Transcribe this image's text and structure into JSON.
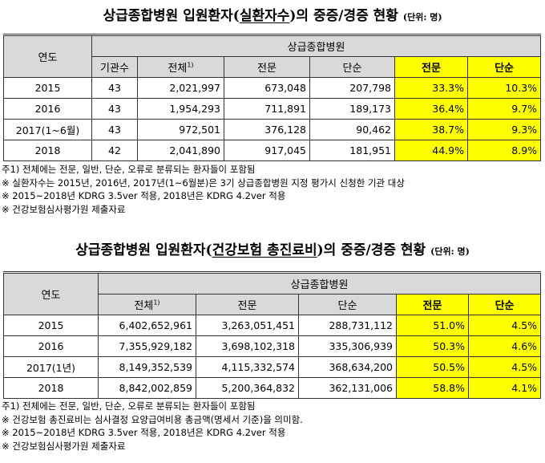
{
  "table1": {
    "title_prefix": "상급종합병원 입원환자(",
    "title_underlined": "실환자수",
    "title_suffix": ")의 중증/경증 현황",
    "unit": "(단위: 명)",
    "header": {
      "year": "연도",
      "group": "상급종합병원",
      "institutions": "기관수",
      "total": "전체",
      "total_sup": "1)",
      "specialized": "전문",
      "simple": "단순",
      "specialized_pct": "전문",
      "simple_pct": "단순"
    },
    "rows": [
      {
        "year": "2015",
        "institutions": "43",
        "total": "2,021,997",
        "specialized": "673,048",
        "simple": "207,798",
        "specialized_pct": "33.3%",
        "simple_pct": "10.3%"
      },
      {
        "year": "2016",
        "institutions": "43",
        "total": "1,954,293",
        "specialized": "711,891",
        "simple": "189,173",
        "specialized_pct": "36.4%",
        "simple_pct": "9.7%"
      },
      {
        "year": "2017(1~6월)",
        "institutions": "43",
        "total": "972,501",
        "specialized": "376,128",
        "simple": "90,462",
        "specialized_pct": "38.7%",
        "simple_pct": "9.3%"
      },
      {
        "year": "2018",
        "institutions": "42",
        "total": "2,041,890",
        "specialized": "917,045",
        "simple": "181,951",
        "specialized_pct": "44.9%",
        "simple_pct": "8.9%"
      }
    ],
    "notes": [
      "주1) 전체에는 전문, 일반, 단순, 오류로 분류되는 환자들이 포함됨",
      "※ 실환자수는 2015년, 2016년, 2017년(1~6월분)은 3기 상급종합병원 지정 평가시 신청한 기관 대상",
      "※ 2015~2018년 KDRG 3.5ver 적용, 2018년은 KDRG 4.2ver 적용",
      "※ 건강보험심사평가원 제출자료"
    ]
  },
  "table2": {
    "title_prefix": "상급종합병원 입원환자(",
    "title_underlined": "건강보험 총진료비",
    "title_suffix": ")의 중증/경증 현황",
    "unit": "(단위: 명)",
    "header": {
      "year": "연도",
      "group": "상급종합병원",
      "total": "전체",
      "total_sup": "1)",
      "specialized": "전문",
      "simple": "단순",
      "specialized_pct": "전문",
      "simple_pct": "단순"
    },
    "rows": [
      {
        "year": "2015",
        "total": "6,402,652,961",
        "specialized": "3,263,051,451",
        "simple": "288,731,112",
        "specialized_pct": "51.0%",
        "simple_pct": "4.5%"
      },
      {
        "year": "2016",
        "total": "7,355,929,182",
        "specialized": "3,698,102,318",
        "simple": "335,306,939",
        "specialized_pct": "50.3%",
        "simple_pct": "4.6%"
      },
      {
        "year": "2017(1년)",
        "total": "8,149,352,539",
        "specialized": "4,115,332,574",
        "simple": "368,634,200",
        "specialized_pct": "50.5%",
        "simple_pct": "4.5%"
      },
      {
        "year": "2018",
        "total": "8,842,002,859",
        "specialized": "5,200,364,832",
        "simple": "362,131,006",
        "specialized_pct": "58.8%",
        "simple_pct": "4.1%"
      }
    ],
    "notes": [
      "주1) 전체에는 전문, 일반, 단순, 오류로 분류되는 환자들이 포함됨",
      "※ 건강보험 총진료비는 심사결정 요양급여비용 총금액(명세서 기준)을 의미함.",
      "※ 2015~2018년 KDRG 3.5ver 적용, 2018년은 KDRG 4.2ver 적용",
      "※ 건강보험심사평가원 제출자료"
    ]
  },
  "colors": {
    "highlight": "#ffff00",
    "header_bg": "#d9d9d9"
  }
}
